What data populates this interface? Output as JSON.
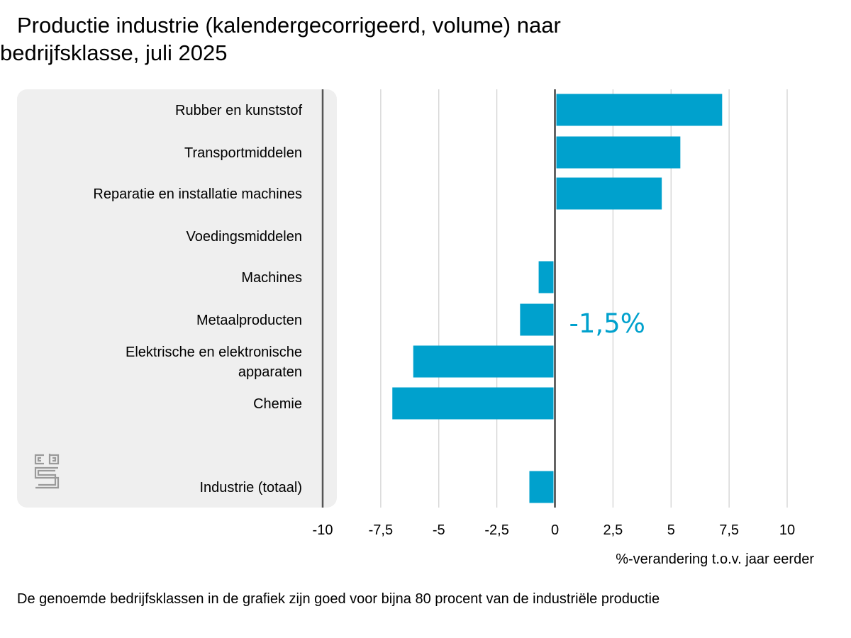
{
  "chart_data": {
    "type": "bar",
    "orientation": "horizontal",
    "title_lines": [
      "Productie industrie (kalendergecorrigeerd, volume) naar",
      "bedrijfsklasse, juli 2025"
    ],
    "categories": [
      [
        "Rubber en kunststof"
      ],
      [
        "Transportmiddelen"
      ],
      [
        "Reparatie en installatie machines"
      ],
      [
        "Voedingsmiddelen"
      ],
      [
        "Machines"
      ],
      [
        "Metaalproducten"
      ],
      [
        "Elektrische en elektronische",
        "apparaten"
      ],
      [
        "Chemie"
      ],
      [
        "Industrie (totaal)"
      ]
    ],
    "values": [
      7.2,
      5.4,
      4.6,
      0.0,
      -0.7,
      -1.5,
      -6.1,
      -7.0,
      -1.1
    ],
    "xlim": [
      -10,
      10
    ],
    "xticks": [
      -10,
      -7.5,
      -5,
      -2.5,
      0,
      2.5,
      5,
      7.5,
      10
    ],
    "xtick_labels": [
      "-10",
      "-7,5",
      "-5",
      "-2,5",
      "0",
      "2,5",
      "5",
      "7,5",
      "10"
    ],
    "xlabel": "%-verandering t.o.v. jaar eerder",
    "annotation": {
      "text": "-1,5%",
      "category_index": 5
    },
    "footnote": "De genoemde bedrijfsklassen in de grafiek zijn goed voor bijna 80 procent van de industriële productie",
    "grid": true,
    "bar_color": "#00a1cd",
    "panel_color": "#efefef",
    "logo": "cbs-logo"
  }
}
